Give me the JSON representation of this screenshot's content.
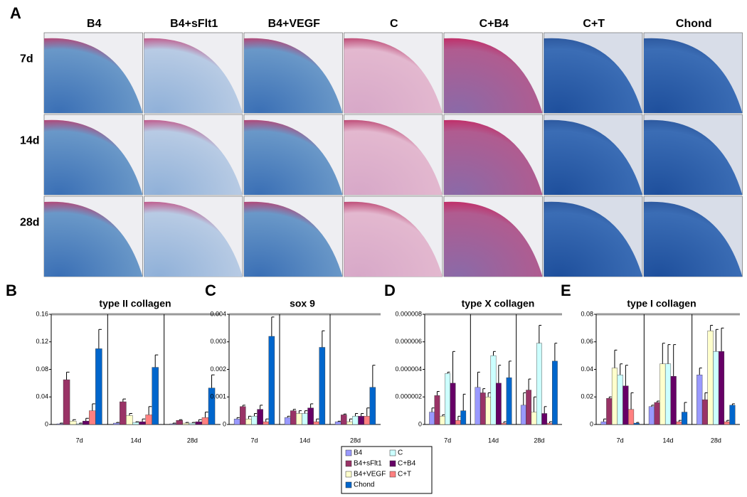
{
  "panel_a": {
    "letter": "A",
    "columns": [
      "B4",
      "B4+sFlt1",
      "B4+VEGF",
      "C",
      "C+B4",
      "C+T",
      "Chond"
    ],
    "rows": [
      "7d",
      "14d",
      "28d"
    ]
  },
  "chart_data": [
    {
      "type": "bar",
      "panel": "B",
      "title": "type II collagen",
      "categories": [
        "7d",
        "14d",
        "28d"
      ],
      "ylim": [
        0,
        0.16
      ],
      "yticks": [
        0,
        0.04,
        0.08,
        0.12,
        0.16
      ],
      "series": [
        {
          "name": "B4",
          "color": "#9999ff",
          "values": [
            0.001,
            0.002,
            0.001
          ],
          "errors": [
            0.001,
            0.001,
            0.001
          ]
        },
        {
          "name": "B4+sFlt1",
          "color": "#993366",
          "values": [
            0.065,
            0.033,
            0.006
          ],
          "errors": [
            0.011,
            0.004,
            0.001
          ]
        },
        {
          "name": "B4+VEGF",
          "color": "#ffffcc",
          "values": [
            0.005,
            0.013,
            0.002
          ],
          "errors": [
            0.002,
            0.003,
            0.001
          ]
        },
        {
          "name": "C",
          "color": "#ccffff",
          "values": [
            0.001,
            0.003,
            0.002
          ],
          "errors": [
            0.001,
            0.001,
            0.001
          ]
        },
        {
          "name": "C+B4",
          "color": "#660066",
          "values": [
            0.005,
            0.004,
            0.004
          ],
          "errors": [
            0.004,
            0.004,
            0.003
          ]
        },
        {
          "name": "C+T",
          "color": "#ff8080",
          "values": [
            0.02,
            0.014,
            0.01
          ],
          "errors": [
            0.01,
            0.012,
            0.008
          ]
        },
        {
          "name": "Chond",
          "color": "#0066cc",
          "values": [
            0.11,
            0.083,
            0.053
          ],
          "errors": [
            0.028,
            0.018,
            0.019
          ]
        }
      ]
    },
    {
      "type": "bar",
      "panel": "C",
      "title": "sox 9",
      "categories": [
        "7d",
        "14d",
        "28d"
      ],
      "ylim": [
        0,
        0.004
      ],
      "yticks": [
        0,
        0.001,
        0.002,
        0.003,
        0.004
      ],
      "series": [
        {
          "name": "B4",
          "color": "#9999ff",
          "values": [
            0.0002,
            0.00025,
            0.0001
          ],
          "errors": [
            5e-05,
            5e-05,
            2e-05
          ]
        },
        {
          "name": "B4+sFlt1",
          "color": "#993366",
          "values": [
            0.00065,
            0.0005,
            0.00035
          ],
          "errors": [
            5e-05,
            5e-05,
            3e-05
          ]
        },
        {
          "name": "B4+VEGF",
          "color": "#ffffcc",
          "values": [
            0.0002,
            0.0004,
            0.0001
          ],
          "errors": [
            0.0001,
            0.0001,
            0.0001
          ]
        },
        {
          "name": "C",
          "color": "#ccffff",
          "values": [
            0.0003,
            0.0004,
            0.0003
          ],
          "errors": [
            0.0001,
            0.0001,
            0.0001
          ]
        },
        {
          "name": "C+B4",
          "color": "#660066",
          "values": [
            0.00055,
            0.0006,
            0.0003
          ],
          "errors": [
            0.00015,
            0.00015,
            0.0001
          ]
        },
        {
          "name": "C+T",
          "color": "#ff8080",
          "values": [
            0.0001,
            0.0001,
            0.0003
          ],
          "errors": [
            0.0001,
            0.0001,
            0.0003
          ]
        },
        {
          "name": "Chond",
          "color": "#0066cc",
          "values": [
            0.0032,
            0.0028,
            0.00135
          ],
          "errors": [
            0.0007,
            0.0006,
            0.0008
          ]
        }
      ]
    },
    {
      "type": "bar",
      "panel": "D",
      "title": "type X collagen",
      "categories": [
        "7d",
        "14d",
        "28d"
      ],
      "ylim": [
        0,
        8e-06
      ],
      "yticks": [
        0,
        2e-06,
        4e-06,
        6e-06,
        8e-06
      ],
      "series": [
        {
          "name": "B4",
          "color": "#9999ff",
          "values": [
            9e-07,
            2.7e-06,
            1.4e-06
          ],
          "errors": [
            3e-07,
            1.1e-06,
            9e-07
          ]
        },
        {
          "name": "B4+sFlt1",
          "color": "#993366",
          "values": [
            2.1e-06,
            2.3e-06,
            2.5e-06
          ],
          "errors": [
            3e-07,
            3e-07,
            8e-07
          ]
        },
        {
          "name": "B4+VEGF",
          "color": "#ffffcc",
          "values": [
            6e-07,
            2e-06,
            9e-07
          ],
          "errors": [
            1e-07,
            3e-07,
            1.1e-06
          ]
        },
        {
          "name": "C",
          "color": "#ccffff",
          "values": [
            3.7e-06,
            5e-06,
            5.9e-06
          ],
          "errors": [
            1e-07,
            3e-07,
            1.3e-06
          ]
        },
        {
          "name": "C+B4",
          "color": "#660066",
          "values": [
            3e-06,
            3e-06,
            8e-07
          ],
          "errors": [
            2.3e-06,
            1.3e-06,
            5e-07
          ]
        },
        {
          "name": "C+T",
          "color": "#ff8080",
          "values": [
            3e-07,
            1e-07,
            1e-07
          ],
          "errors": [
            3e-07,
            1e-07,
            1e-07
          ]
        },
        {
          "name": "Chond",
          "color": "#0066cc",
          "values": [
            1e-06,
            3.4e-06,
            4.6e-06
          ],
          "errors": [
            1.2e-06,
            1.2e-06,
            1.3e-06
          ]
        }
      ]
    },
    {
      "type": "bar",
      "panel": "E",
      "title": "type I collagen",
      "categories": [
        "7d",
        "14d",
        "28d"
      ],
      "ylim": [
        0,
        0.08
      ],
      "yticks": [
        0,
        0.02,
        0.04,
        0.06,
        0.08
      ],
      "series": [
        {
          "name": "B4",
          "color": "#9999ff",
          "values": [
            0.002,
            0.013,
            0.036
          ],
          "errors": [
            0.002,
            0.001,
            0.005
          ]
        },
        {
          "name": "B4+sFlt1",
          "color": "#993366",
          "values": [
            0.019,
            0.016,
            0.018
          ],
          "errors": [
            0.001,
            0.001,
            0.005
          ]
        },
        {
          "name": "B4+VEGF",
          "color": "#ffffcc",
          "values": [
            0.041,
            0.044,
            0.068
          ],
          "errors": [
            0.013,
            0.015,
            0.004
          ]
        },
        {
          "name": "C",
          "color": "#ccffff",
          "values": [
            0.036,
            0.044,
            0.053
          ],
          "errors": [
            0.008,
            0.014,
            0.016
          ]
        },
        {
          "name": "C+B4",
          "color": "#660066",
          "values": [
            0.028,
            0.035,
            0.053
          ],
          "errors": [
            0.015,
            0.023,
            0.017
          ]
        },
        {
          "name": "C+T",
          "color": "#ff8080",
          "values": [
            0.011,
            0.002,
            0.002
          ],
          "errors": [
            0.012,
            0.001,
            0.001
          ]
        },
        {
          "name": "Chond",
          "color": "#0066cc",
          "values": [
            0.001,
            0.009,
            0.014
          ],
          "errors": [
            0.0005,
            0.007,
            0.001
          ]
        }
      ]
    }
  ]
}
